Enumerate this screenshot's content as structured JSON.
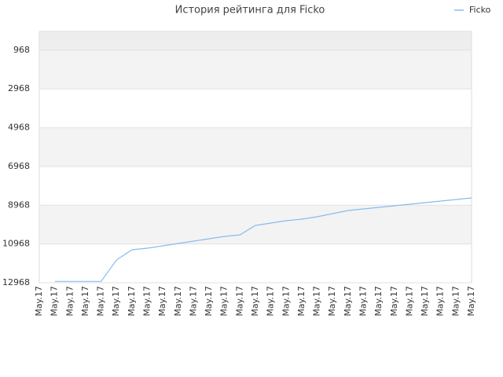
{
  "chart_data": {
    "type": "line",
    "title": "История рейтинга для Ficko",
    "categories": [
      "May.17",
      "May.17",
      "May.17",
      "May.17",
      "May.17",
      "May.17",
      "May.17",
      "May.17",
      "May.17",
      "May.17",
      "May.17",
      "May.17",
      "May.17",
      "May.17",
      "May.17",
      "May.17",
      "May.17",
      "May.17",
      "May.17",
      "May.17",
      "May.17",
      "May.17",
      "May.17",
      "May.17",
      "May.17",
      "May.17",
      "May.17",
      "May.17",
      "May.17"
    ],
    "series": [
      {
        "name": "Ficko",
        "color": "#88bbee",
        "values": [
          null,
          12900,
          12900,
          12900,
          12900,
          11793,
          11266,
          11185,
          11063,
          10942,
          10820,
          10699,
          10577,
          10496,
          10010,
          9888,
          9767,
          9685,
          9564,
          9402,
          9240,
          9159,
          9078,
          8997,
          8916,
          8834,
          8753,
          8672,
          8591
        ]
      }
    ],
    "ylim": [
      0,
      12968
    ],
    "y_inverted": true,
    "yticks": [
      968,
      2968,
      4968,
      6968,
      8968,
      10968,
      12968
    ],
    "grid": true,
    "legend": "top-right"
  }
}
